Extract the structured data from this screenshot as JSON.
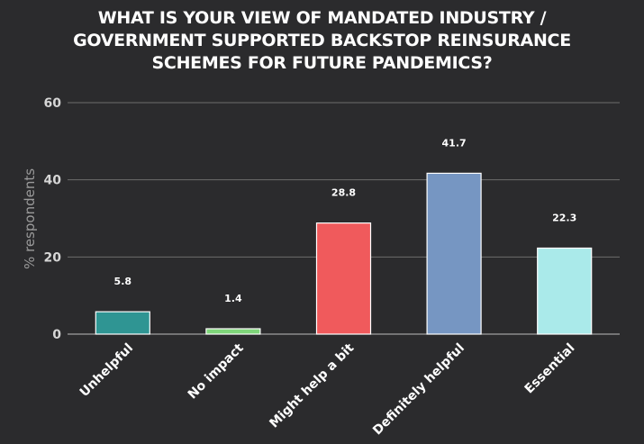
{
  "chart_data": {
    "type": "bar",
    "title_lines": [
      "WHAT IS YOUR VIEW OF MANDATED INDUSTRY /",
      "GOVERNMENT SUPPORTED BACKSTOP REINSURANCE",
      "SCHEMES FOR FUTURE PANDEMICS?"
    ],
    "xlabel": "",
    "ylabel": "% respondents",
    "ylim": [
      0,
      60
    ],
    "yticks": [
      0,
      20,
      40,
      60
    ],
    "grid": true,
    "categories": [
      "Unhelpful",
      "No impact",
      "Might help a bit",
      "Definitely helpful",
      "Essential"
    ],
    "values": [
      5.8,
      1.4,
      28.8,
      41.7,
      22.3
    ],
    "value_labels": [
      "5.8",
      "1.4",
      "28.8",
      "41.7",
      "22.3"
    ],
    "colors": [
      "#2f9593",
      "#7fd67a",
      "#f05a5c",
      "#7696c2",
      "#aaeaea"
    ]
  }
}
